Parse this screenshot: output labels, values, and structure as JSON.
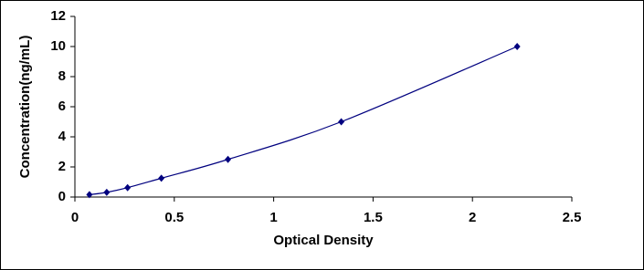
{
  "chart_data": {
    "type": "scatter",
    "x_label": "Optical Density",
    "y_label": "Concentration(ng/mL)",
    "series": [
      {
        "color": "#00007f",
        "x": [
          0.073,
          0.16,
          0.265,
          0.435,
          0.77,
          1.34,
          2.225
        ],
        "values": [
          0.156,
          0.312,
          0.625,
          1.25,
          2.5,
          5,
          10
        ]
      }
    ],
    "xlim": [
      0,
      2.5
    ],
    "xticks": [
      0,
      0.5,
      1,
      1.5,
      2,
      2.5
    ],
    "ylim": [
      0,
      12
    ],
    "yticks": [
      0,
      2,
      4,
      6,
      8,
      10,
      12
    ],
    "grid": false
  }
}
